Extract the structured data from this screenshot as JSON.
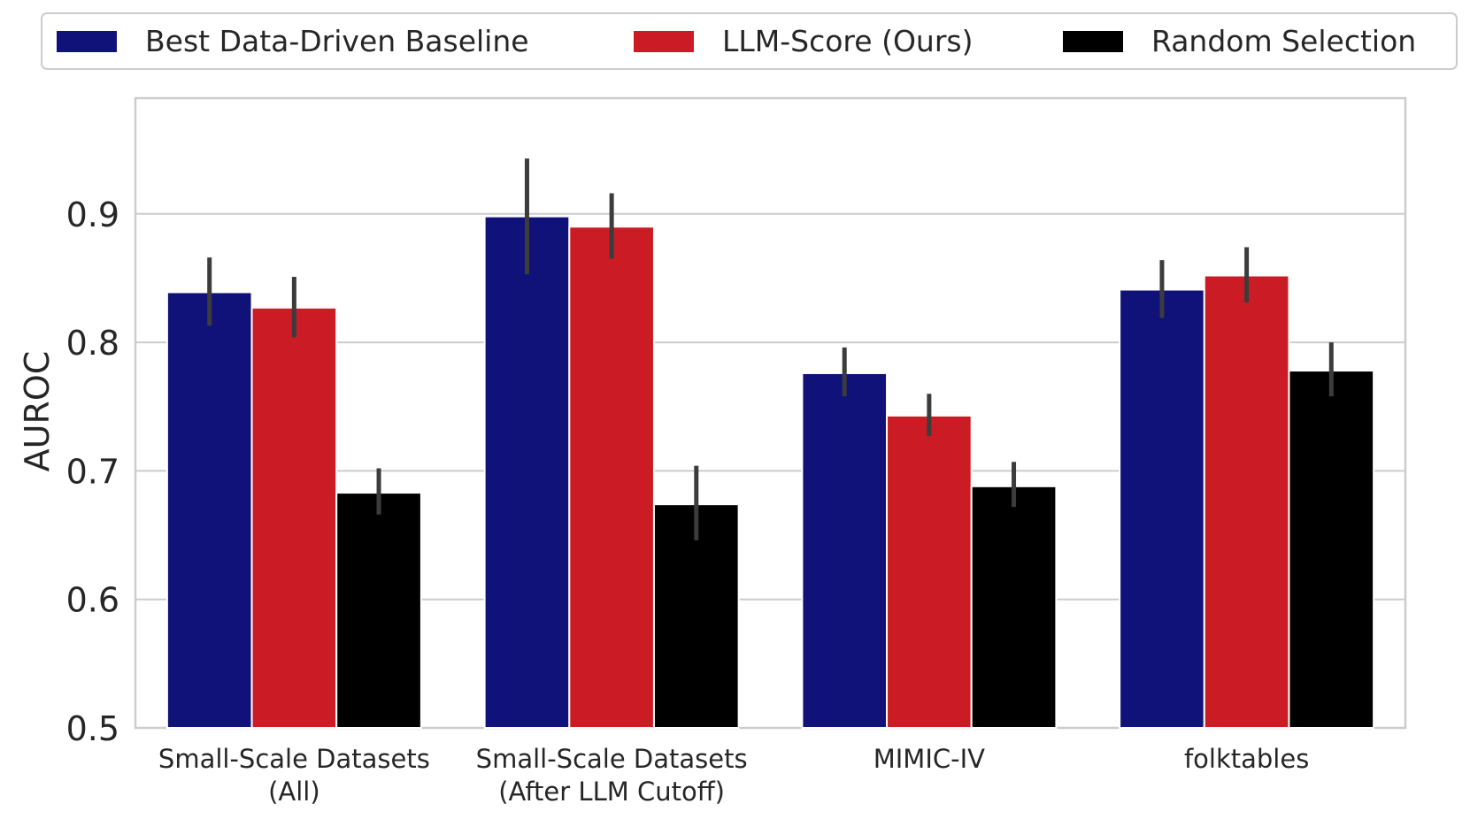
{
  "chart_data": {
    "type": "bar",
    "title": "",
    "xlabel": "",
    "ylabel": "AUROC",
    "ylim": [
      0.5,
      0.99
    ],
    "yticks": [
      "0.5",
      "0.6",
      "0.7",
      "0.8",
      "0.9"
    ],
    "grid": true,
    "legend_position": "top",
    "categories": [
      [
        "Small-Scale Datasets",
        "(All)"
      ],
      [
        "Small-Scale Datasets",
        "(After LLM Cutoff)"
      ],
      [
        "MIMIC-IV"
      ],
      [
        "folktables"
      ]
    ],
    "series": [
      {
        "name": "Best Data-Driven Baseline",
        "color": "#10127a",
        "values": [
          0.839,
          0.898,
          0.776,
          0.841
        ],
        "error_low": [
          0.813,
          0.853,
          0.758,
          0.819
        ],
        "error_high": [
          0.866,
          0.943,
          0.796,
          0.864
        ]
      },
      {
        "name": "LLM-Score (Ours)",
        "color": "#cb1c26",
        "values": [
          0.827,
          0.89,
          0.743,
          0.852
        ],
        "error_low": [
          0.804,
          0.865,
          0.727,
          0.831
        ],
        "error_high": [
          0.851,
          0.916,
          0.76,
          0.874
        ]
      },
      {
        "name": "Random Selection",
        "color": "#000000",
        "values": [
          0.683,
          0.674,
          0.688,
          0.778
        ],
        "error_low": [
          0.666,
          0.646,
          0.672,
          0.758
        ],
        "error_high": [
          0.702,
          0.704,
          0.707,
          0.8
        ]
      }
    ]
  }
}
